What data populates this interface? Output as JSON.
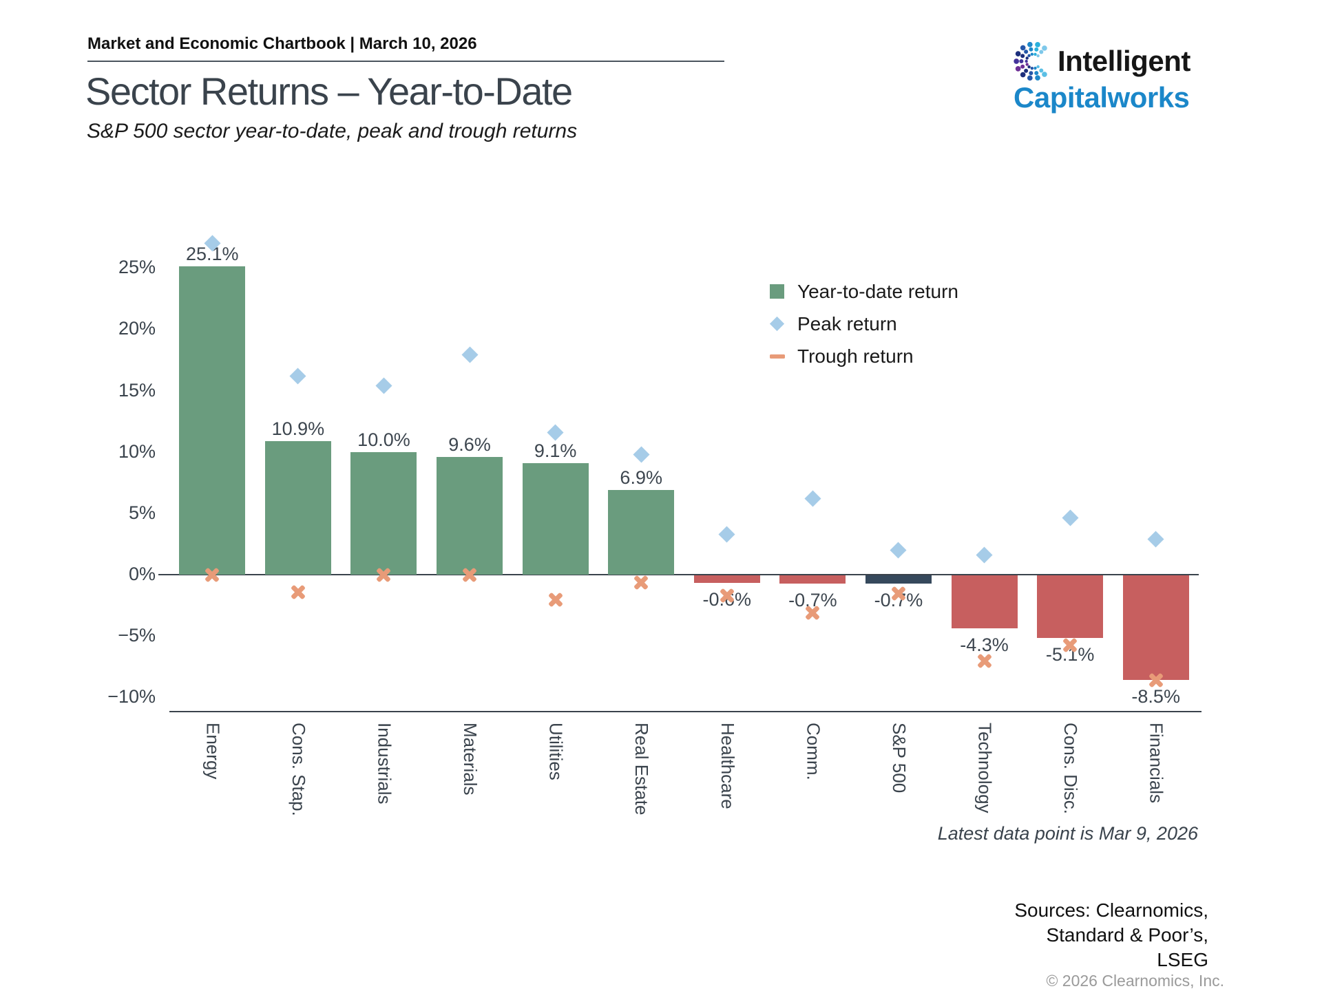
{
  "header": {
    "chartbook_label": "Market and Economic Chartbook | March 10, 2026"
  },
  "logo": {
    "line1": "Intelligent",
    "line2": "Capitalworks",
    "line2_color": "#1b87c9"
  },
  "page_title": "Sector Returns – Year-to-Date",
  "subtitle": "S&P 500 sector year-to-date, peak and trough returns",
  "legend": [
    {
      "type": "square",
      "label": "Year-to-date return",
      "color": "#6a9c7e"
    },
    {
      "type": "diamond",
      "label": "Peak return",
      "color": "#a6cce8"
    },
    {
      "type": "cross",
      "label": "Trough return",
      "color": "#e89b78"
    }
  ],
  "footnote": "Latest data point is Mar 9, 2026",
  "sources_lines": [
    "Sources: Clearnomics,",
    "Standard & Poor’s,",
    "LSEG"
  ],
  "copyright": "© 2026 Clearnomics, Inc.",
  "chart_data": {
    "type": "bar",
    "title": "Sector Returns – Year-to-Date",
    "categories": [
      "Energy",
      "Cons. Stap.",
      "Industrials",
      "Materials",
      "Utilities",
      "Real Estate",
      "Healthcare",
      "Comm.",
      "S&P 500",
      "Technology",
      "Cons. Disc.",
      "Financials"
    ],
    "series": [
      {
        "name": "Year-to-date return",
        "type": "bar",
        "values": [
          25.1,
          10.9,
          10.0,
          9.6,
          9.1,
          6.9,
          -0.6,
          -0.7,
          -0.7,
          -4.3,
          -5.1,
          -8.5
        ],
        "labels": [
          "25.1%",
          "10.9%",
          "10.0%",
          "9.6%",
          "9.1%",
          "6.9%",
          "-0.6%",
          "-0.7%",
          "-0.7%",
          "-4.3%",
          "-5.1%",
          "-8.5%"
        ]
      },
      {
        "name": "Peak return",
        "type": "scatter",
        "marker": "diamond",
        "values": [
          27.0,
          16.2,
          15.4,
          17.9,
          11.6,
          9.8,
          3.3,
          6.2,
          2.0,
          1.6,
          4.6,
          2.9
        ]
      },
      {
        "name": "Trough return",
        "type": "scatter",
        "marker": "cross",
        "values": [
          0.0,
          -1.4,
          0.0,
          0.0,
          -2.0,
          -0.6,
          -1.7,
          -3.1,
          -1.5,
          -7.0,
          -5.7,
          -8.6
        ]
      }
    ],
    "yticks": [
      25,
      20,
      15,
      10,
      5,
      0,
      -5,
      -10
    ],
    "ytick_labels": [
      "25%",
      "20%",
      "15%",
      "10%",
      "5%",
      "0%",
      "−5%",
      "−10%"
    ],
    "ylim": [
      -11.2,
      30.5
    ],
    "grid": false,
    "legend_position": "upper right",
    "bar_color_positive": "#6a9c7e",
    "bar_color_negative": "#c75f5f",
    "bar_color_highlight": "#36495c",
    "highlight_category": "S&P 500",
    "marker_color_peak": "#a6cce8",
    "marker_color_trough": "#e89b78",
    "axis_color": "#3a434c"
  }
}
